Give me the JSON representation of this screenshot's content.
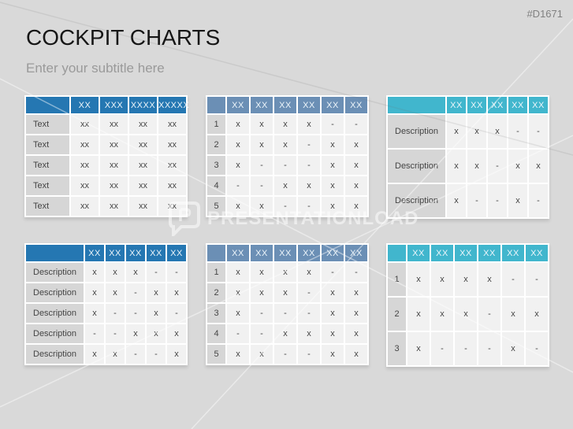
{
  "slide": {
    "code": "#D1671",
    "title": "COCKPIT CHARTS",
    "subtitle": "Enter your subtitle here",
    "watermark_text": "PRESENTATIONLOAD"
  },
  "colors": {
    "background": "#d9d9d9",
    "header_blue": "#2577b2",
    "header_steel": "#6b8fb5",
    "header_cyan": "#41b6cd",
    "label_cell": "#d6d6d6",
    "data_cell": "#f1f1f1",
    "cell_text": "#454545",
    "header_text": "#eef6fb"
  },
  "tables": [
    {
      "name": "top-left",
      "theme": "blue",
      "header": [
        "",
        "XX",
        "XXX",
        "XXXX",
        "XXXXX"
      ],
      "rows": [
        [
          "Text",
          "xx",
          "xx",
          "xx",
          "xx"
        ],
        [
          "Text",
          "xx",
          "xx",
          "xx",
          "xx"
        ],
        [
          "Text",
          "xx",
          "xx",
          "xx",
          "xx"
        ],
        [
          "Text",
          "xx",
          "xx",
          "xx",
          "xx"
        ],
        [
          "Text",
          "xx",
          "xx",
          "xx",
          "xx"
        ]
      ]
    },
    {
      "name": "top-center",
      "theme": "steel",
      "header": [
        "",
        "XX",
        "XX",
        "XX",
        "XX",
        "XX",
        "XX"
      ],
      "rows": [
        [
          "1",
          "x",
          "x",
          "x",
          "x",
          "-",
          "-"
        ],
        [
          "2",
          "x",
          "x",
          "x",
          "-",
          "x",
          "x"
        ],
        [
          "3",
          "x",
          "-",
          "-",
          "-",
          "x",
          "x"
        ],
        [
          "4",
          "-",
          "-",
          "x",
          "x",
          "x",
          "x"
        ],
        [
          "5",
          "x",
          "x",
          "-",
          "-",
          "x",
          "x"
        ]
      ]
    },
    {
      "name": "top-right",
      "theme": "cyan",
      "header": [
        "",
        "XX",
        "XX",
        "XX",
        "XX",
        "XX"
      ],
      "rows": [
        [
          "Description",
          "x",
          "x",
          "x",
          "-",
          "-"
        ],
        [
          "Description",
          "x",
          "x",
          "-",
          "x",
          "x"
        ],
        [
          "Description",
          "x",
          "-",
          "-",
          "x",
          "-"
        ]
      ]
    },
    {
      "name": "bottom-left",
      "theme": "blue",
      "header": [
        "",
        "XX",
        "XX",
        "XX",
        "XX",
        "XX"
      ],
      "rows": [
        [
          "Description",
          "x",
          "x",
          "x",
          "-",
          "-"
        ],
        [
          "Description",
          "x",
          "x",
          "-",
          "x",
          "x"
        ],
        [
          "Description",
          "x",
          "-",
          "-",
          "x",
          "-"
        ],
        [
          "Description",
          "-",
          "-",
          "x",
          "x",
          "x"
        ],
        [
          "Description",
          "x",
          "x",
          "-",
          "-",
          "x"
        ]
      ]
    },
    {
      "name": "bottom-center",
      "theme": "steel",
      "header": [
        "",
        "XX",
        "XX",
        "XX",
        "XX",
        "XX",
        "XX"
      ],
      "rows": [
        [
          "1",
          "x",
          "x",
          "x",
          "x",
          "-",
          "-"
        ],
        [
          "2",
          "x",
          "x",
          "x",
          "-",
          "x",
          "x"
        ],
        [
          "3",
          "x",
          "-",
          "-",
          "-",
          "x",
          "x"
        ],
        [
          "4",
          "-",
          "-",
          "x",
          "x",
          "x",
          "x"
        ],
        [
          "5",
          "x",
          "x",
          "-",
          "-",
          "x",
          "x"
        ]
      ]
    },
    {
      "name": "bottom-right",
      "theme": "cyan",
      "header": [
        "",
        "XX",
        "XX",
        "XX",
        "XX",
        "XX",
        "XX"
      ],
      "rows": [
        [
          "1",
          "x",
          "x",
          "x",
          "x",
          "-",
          "-"
        ],
        [
          "2",
          "x",
          "x",
          "x",
          "-",
          "x",
          "x"
        ],
        [
          "3",
          "x",
          "-",
          "-",
          "-",
          "x",
          "-"
        ]
      ]
    }
  ]
}
